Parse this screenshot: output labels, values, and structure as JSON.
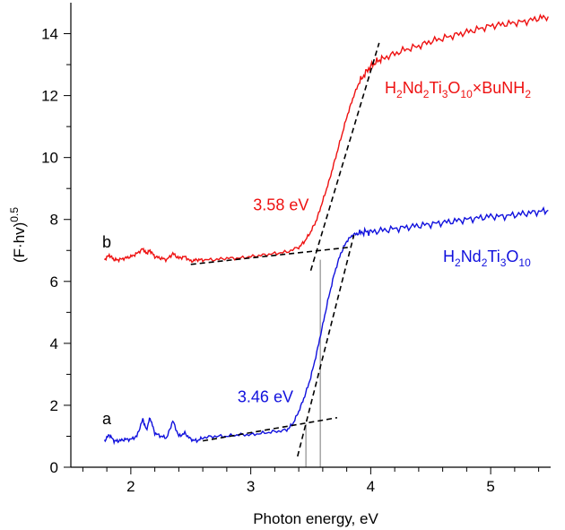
{
  "chart_data": {
    "type": "line",
    "xlabel": "Photon energy, eV",
    "ylabel": "(F·hv)",
    "ylabel_sup": "0.5",
    "xlim": [
      1.5,
      5.5
    ],
    "ylim": [
      0,
      15
    ],
    "xticks": [
      2,
      3,
      4,
      5
    ],
    "yticks": [
      0,
      2,
      4,
      6,
      8,
      10,
      12,
      14
    ],
    "grid": false,
    "series": [
      {
        "name": "H2Nd2Ti3O10×BuNH2",
        "letter": "b",
        "color": "#ee1111",
        "x": [
          1.78,
          1.82,
          1.86,
          1.9,
          1.95,
          2.0,
          2.05,
          2.1,
          2.13,
          2.16,
          2.2,
          2.25,
          2.3,
          2.35,
          2.4,
          2.45,
          2.5,
          2.55,
          2.6,
          2.7,
          2.8,
          2.9,
          3.0,
          3.1,
          3.2,
          3.3,
          3.4,
          3.45,
          3.5,
          3.55,
          3.6,
          3.65,
          3.7,
          3.75,
          3.8,
          3.85,
          3.9,
          3.95,
          4.0,
          4.05,
          4.1,
          4.2,
          4.3,
          4.4,
          4.5,
          4.6,
          4.7,
          4.8,
          4.9,
          5.0,
          5.1,
          5.2,
          5.3,
          5.4,
          5.48
        ],
        "y": [
          6.7,
          6.85,
          6.7,
          6.7,
          6.75,
          6.8,
          6.9,
          7.05,
          6.9,
          7.0,
          6.8,
          6.75,
          6.7,
          6.9,
          6.75,
          6.8,
          6.65,
          6.7,
          6.7,
          6.7,
          6.75,
          6.75,
          6.8,
          6.85,
          6.9,
          6.95,
          7.1,
          7.3,
          7.6,
          8.0,
          8.6,
          9.2,
          9.9,
          10.6,
          11.3,
          11.9,
          12.4,
          12.7,
          12.95,
          13.1,
          13.2,
          13.35,
          13.5,
          13.6,
          13.75,
          13.85,
          13.95,
          14.05,
          14.15,
          14.25,
          14.3,
          14.35,
          14.4,
          14.5,
          14.55
        ]
      },
      {
        "name": "H2Nd2Ti3O10",
        "letter": "a",
        "color": "#1111dd",
        "x": [
          1.78,
          1.82,
          1.86,
          1.9,
          1.95,
          2.0,
          2.05,
          2.1,
          2.13,
          2.16,
          2.2,
          2.25,
          2.3,
          2.35,
          2.4,
          2.45,
          2.5,
          2.55,
          2.6,
          2.7,
          2.8,
          2.9,
          3.0,
          3.1,
          3.2,
          3.3,
          3.35,
          3.4,
          3.45,
          3.5,
          3.55,
          3.6,
          3.65,
          3.7,
          3.75,
          3.8,
          3.85,
          3.9,
          3.95,
          4.0,
          4.1,
          4.2,
          4.3,
          4.4,
          4.5,
          4.6,
          4.7,
          4.8,
          4.9,
          5.0,
          5.1,
          5.2,
          5.3,
          5.4,
          5.48
        ],
        "y": [
          0.85,
          1.05,
          0.85,
          0.85,
          0.9,
          0.9,
          1.0,
          1.55,
          1.2,
          1.6,
          1.1,
          1.0,
          0.95,
          1.5,
          1.0,
          1.1,
          0.9,
          0.85,
          0.95,
          1.0,
          1.0,
          1.05,
          1.05,
          1.1,
          1.15,
          1.2,
          1.4,
          1.8,
          2.3,
          2.9,
          3.7,
          4.6,
          5.5,
          6.3,
          6.9,
          7.3,
          7.5,
          7.55,
          7.6,
          7.6,
          7.65,
          7.7,
          7.75,
          7.8,
          7.85,
          7.9,
          7.95,
          8.0,
          8.05,
          8.1,
          8.1,
          8.15,
          8.2,
          8.25,
          8.3
        ]
      }
    ],
    "annotations": [
      {
        "text": "3.58 eV",
        "color": "#ee1111",
        "x": 3.02,
        "y": 8.3
      },
      {
        "text": "3.46 eV",
        "color": "#1111dd",
        "x": 2.89,
        "y": 2.1
      }
    ],
    "fit_lines": [
      {
        "x": [
          2.5,
          3.82
        ],
        "y": [
          6.55,
          7.1
        ]
      },
      {
        "x": [
          3.5,
          4.07
        ],
        "y": [
          6.35,
          13.7
        ]
      },
      {
        "x": [
          2.6,
          3.72
        ],
        "y": [
          0.85,
          1.6
        ]
      },
      {
        "x": [
          3.39,
          3.86
        ],
        "y": [
          0.35,
          7.5
        ]
      }
    ],
    "band_gaps": [
      3.46,
      3.58
    ]
  },
  "labels": {
    "b_text": "b",
    "a_text": "a",
    "b_formula": [
      {
        "t": "H",
        "s": false
      },
      {
        "t": "2",
        "s": true
      },
      {
        "t": "Nd",
        "s": false
      },
      {
        "t": "2",
        "s": true
      },
      {
        "t": "Ti",
        "s": false
      },
      {
        "t": "3",
        "s": true
      },
      {
        "t": "O",
        "s": false
      },
      {
        "t": "10",
        "s": true
      },
      {
        "t": "×BuNH",
        "s": false
      },
      {
        "t": "2",
        "s": true
      }
    ],
    "a_formula": [
      {
        "t": "H",
        "s": false
      },
      {
        "t": "2",
        "s": true
      },
      {
        "t": "Nd",
        "s": false
      },
      {
        "t": "2",
        "s": true
      },
      {
        "t": "Ti",
        "s": false
      },
      {
        "t": "3",
        "s": true
      },
      {
        "t": "O",
        "s": false
      },
      {
        "t": "10",
        "s": true
      }
    ]
  }
}
